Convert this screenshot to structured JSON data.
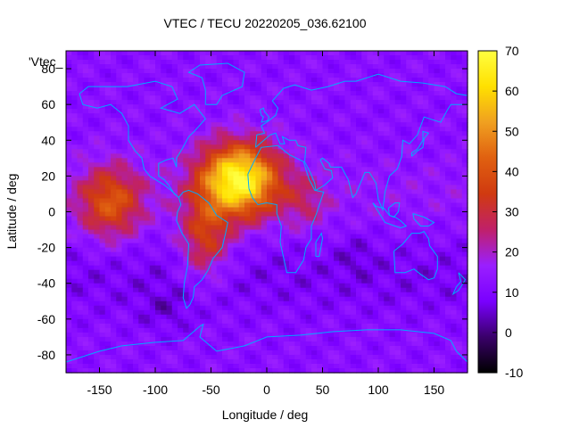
{
  "chart_data": {
    "type": "heatmap",
    "title": "VTEC / TECU 20220205_036.62100",
    "xlabel": "Longitude / deg",
    "ylabel": "Latitude / deg",
    "legend_label": "'Vtec_",
    "xlim": [
      -180,
      180
    ],
    "ylim": [
      -90,
      90
    ],
    "x_ticks": [
      -150,
      -100,
      -50,
      0,
      50,
      100,
      150
    ],
    "x_tick_labels": [
      "-150",
      "-100",
      "-50",
      "0",
      "50",
      "100",
      "150"
    ],
    "y_ticks": [
      -80,
      -60,
      -40,
      -20,
      0,
      20,
      40,
      60,
      80
    ],
    "y_tick_labels": [
      "-80",
      "-60",
      "-40",
      "-20",
      "0",
      "20",
      "40",
      "60",
      "80"
    ],
    "colorbar": {
      "range": [
        -10,
        70
      ],
      "ticks": [
        -10,
        0,
        10,
        20,
        30,
        40,
        50,
        60,
        70
      ],
      "tick_labels": [
        "-10",
        "0",
        "10",
        "20",
        "30",
        "40",
        "50",
        "60",
        "70"
      ],
      "palette": [
        "#000000",
        "#3a006a",
        "#7a00ff",
        "#9a1fff",
        "#c0206a",
        "#d03a10",
        "#e06010",
        "#f0a020",
        "#ffe000",
        "#ffff40"
      ]
    },
    "grid_resolution_deg": [
      5,
      2.5
    ],
    "field_description_values": {
      "background_tecu": 12,
      "southern_low_tecu": 7,
      "peak_tecu": 68,
      "peak_lon": -25,
      "peak_lat": 18,
      "pacific_blob_tecu": 38,
      "pacific_blob_lon": -140,
      "pacific_blob_lat": 5
    },
    "coastline_color": "#00aaff"
  }
}
